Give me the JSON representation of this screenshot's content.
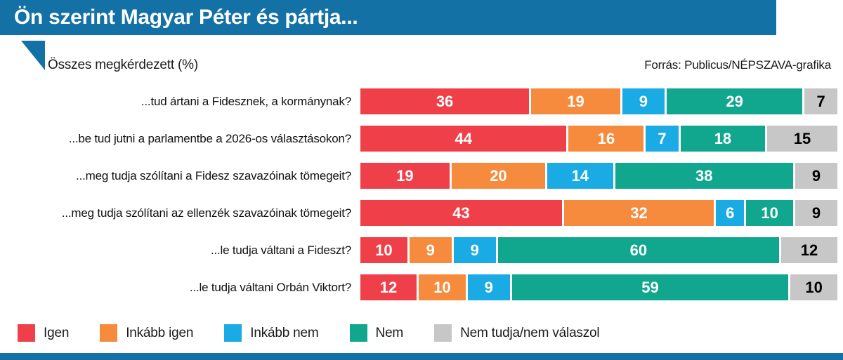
{
  "header": {
    "title": "Ön szerint Magyar Péter és pártja..."
  },
  "subtitle": "Összes megkérdezett (%)",
  "source": "Forrás: Publicus/NÉPSZAVA-grafika",
  "colors": {
    "frame_blue": "#1471a6",
    "igen": "#ef404a",
    "inkabb_igen": "#f68b3d",
    "inkabb_nem": "#1babe4",
    "nem": "#10a78e",
    "nem_tudja": "#c7c7c7"
  },
  "chart_data": {
    "type": "bar",
    "stacked": true,
    "orientation": "horizontal",
    "unit": "%",
    "xlim": [
      0,
      100
    ],
    "legend_position": "bottom",
    "categories": [
      "...tud ártani a Fidesznek, a kormánynak?",
      "...be tud jutni a parlamentbe a 2026-os választásokon?",
      "...meg tudja szólítani a Fidesz szavazóinak tömegeit?",
      "...meg tudja szólítani az ellenzék szavazóinak tömegeit?",
      "...le tudja váltani a Fideszt?",
      "...le tudja váltani Orbán Viktort?"
    ],
    "series": [
      {
        "name": "Igen",
        "color": "#ef404a",
        "text_color": "#ffffff",
        "values": [
          36,
          44,
          19,
          43,
          10,
          12
        ]
      },
      {
        "name": "Inkább igen",
        "color": "#f68b3d",
        "text_color": "#ffffff",
        "values": [
          19,
          16,
          20,
          32,
          9,
          10
        ]
      },
      {
        "name": "Inkább nem",
        "color": "#1babe4",
        "text_color": "#ffffff",
        "values": [
          9,
          7,
          14,
          6,
          9,
          9
        ]
      },
      {
        "name": "Nem",
        "color": "#10a78e",
        "text_color": "#ffffff",
        "values": [
          29,
          18,
          38,
          10,
          60,
          59
        ]
      },
      {
        "name": "Nem tudja/nem válaszol",
        "color": "#c7c7c7",
        "text_color": "#000000",
        "values": [
          7,
          15,
          9,
          9,
          12,
          10
        ]
      }
    ]
  }
}
